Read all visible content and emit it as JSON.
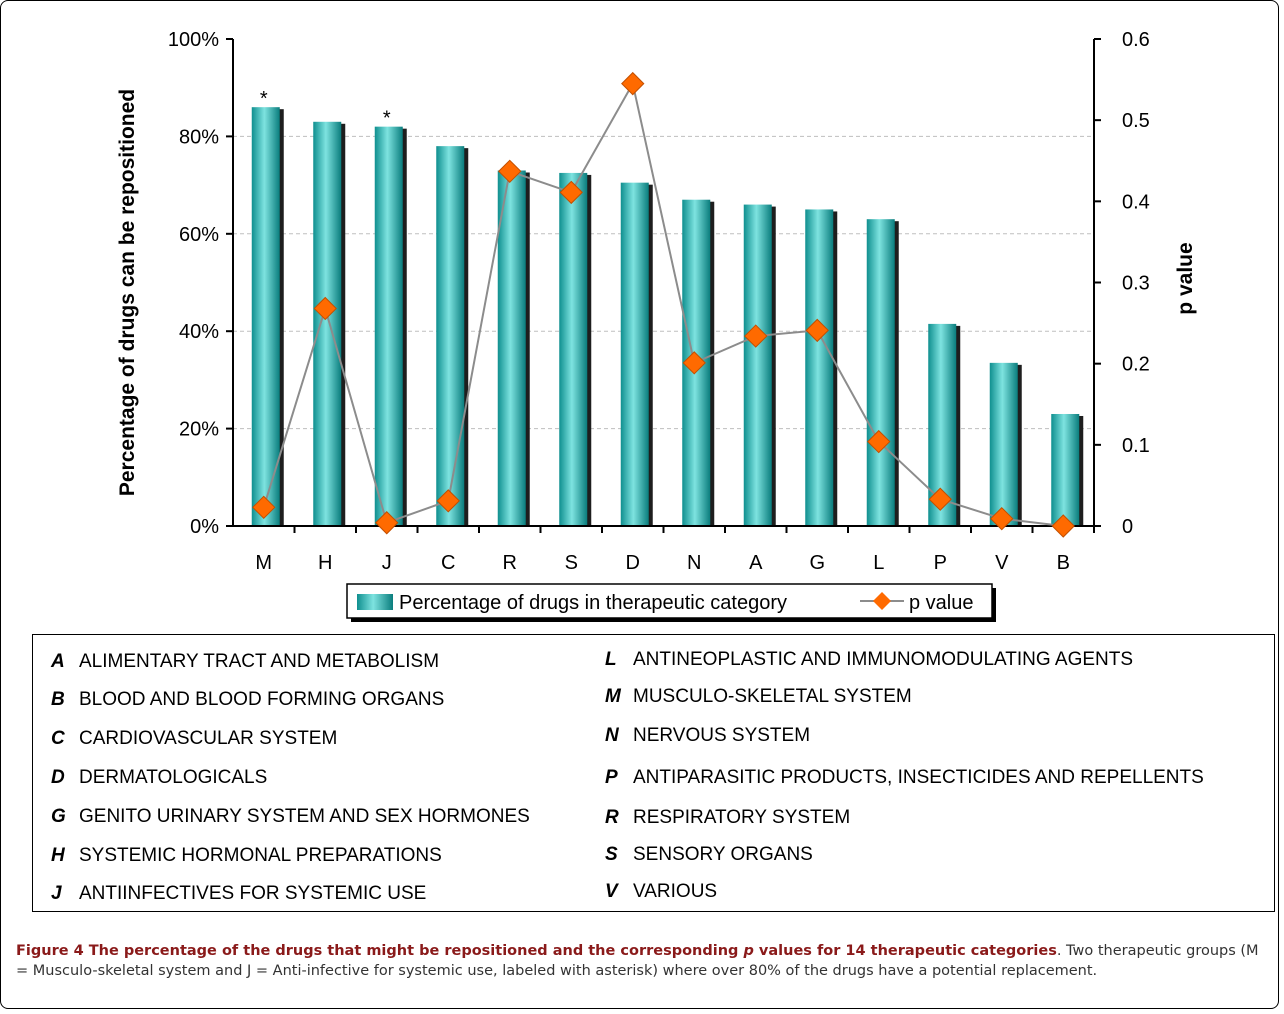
{
  "chart_data": {
    "type": "bar+line",
    "categories": [
      "M",
      "H",
      "J",
      "C",
      "R",
      "S",
      "D",
      "N",
      "A",
      "G",
      "L",
      "P",
      "V",
      "B"
    ],
    "series": [
      {
        "name": "Percentage of drugs in therapeutic category",
        "type": "bar",
        "axis": "left",
        "color": "#1aaeae",
        "values": [
          86,
          83,
          82,
          78,
          73,
          72.5,
          70.5,
          67,
          66,
          65,
          63,
          41.5,
          33.5,
          23
        ]
      },
      {
        "name": "p value",
        "type": "line",
        "axis": "right",
        "color": "#ff6a00",
        "values": [
          0.023,
          0.268,
          0.004,
          0.031,
          0.437,
          0.411,
          0.545,
          0.201,
          0.234,
          0.241,
          0.104,
          0.033,
          0.009,
          0.0
        ]
      }
    ],
    "left_axis": {
      "label": "Percentage of drugs can be repositioned",
      "ticks": [
        "0%",
        "20%",
        "40%",
        "60%",
        "80%",
        "100%"
      ],
      "range": [
        0,
        100
      ]
    },
    "right_axis": {
      "label": "p value",
      "ticks": [
        "0",
        "0.1",
        "0.2",
        "0.3",
        "0.4",
        "0.5",
        "0.6"
      ],
      "range": [
        0,
        0.6
      ]
    },
    "annotations": [
      {
        "category": "M",
        "text": "*"
      },
      {
        "category": "J",
        "text": "*"
      }
    ],
    "legend_position": "bottom",
    "grid": true
  },
  "categories_legend": {
    "left": [
      {
        "code": "A",
        "name": "ALIMENTARY TRACT AND METABOLISM"
      },
      {
        "code": "B",
        "name": "BLOOD AND BLOOD FORMING ORGANS"
      },
      {
        "code": "C",
        "name": "CARDIOVASCULAR SYSTEM"
      },
      {
        "code": "D",
        "name": "DERMATOLOGICALS"
      },
      {
        "code": "G",
        "name": "GENITO URINARY SYSTEM AND SEX HORMONES"
      },
      {
        "code": "H",
        "name": "SYSTEMIC HORMONAL PREPARATIONS"
      },
      {
        "code": "J",
        "name": "ANTIINFECTIVES FOR SYSTEMIC USE"
      }
    ],
    "right": [
      {
        "code": "L",
        "name": "ANTINEOPLASTIC AND IMMUNOMODULATING AGENTS"
      },
      {
        "code": "M",
        "name": "MUSCULO-SKELETAL SYSTEM"
      },
      {
        "code": "N",
        "name": "NERVOUS SYSTEM"
      },
      {
        "code": "P",
        "name": "ANTIPARASITIC PRODUCTS, INSECTICIDES AND REPELLENTS"
      },
      {
        "code": "R",
        "name": "RESPIRATORY SYSTEM"
      },
      {
        "code": "S",
        "name": "SENSORY ORGANS"
      },
      {
        "code": "V",
        "name": "VARIOUS"
      }
    ]
  },
  "caption": {
    "title_part1": "Figure 4 The percentage of the drugs that might be repositioned and the corresponding ",
    "title_italic": "p",
    "title_part2": " values for 14 therapeutic categories",
    "body": ". Two therapeutic groups (M = Musculo-skeletal system and J = Anti-infective for systemic use, labeled with asterisk) where over 80% of the drugs have a potential replacement."
  }
}
